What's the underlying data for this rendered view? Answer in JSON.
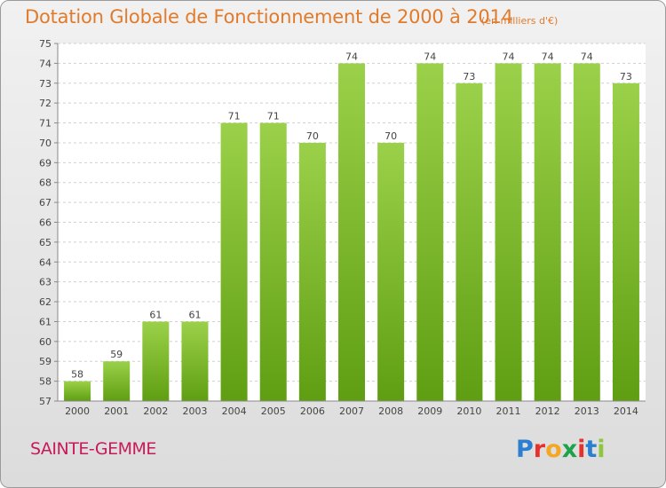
{
  "header": {
    "title": "Dotation Globale de Fonctionnement de 2000 à 2014",
    "unit": "(en milliers d'€)"
  },
  "footer": {
    "commune": "SAINTE-GEMME",
    "logo": "Proxiti",
    "logo_colors": [
      "#2a7fd0",
      "#e7312b",
      "#f5a623",
      "#1aa34a",
      "#e7312b",
      "#2a7fd0",
      "#8dc63f"
    ]
  },
  "chart_data": {
    "type": "bar",
    "title": "Dotation Globale de Fonctionnement de 2000 à 2014",
    "subtitle": "(en milliers d'€)",
    "xlabel": "",
    "ylabel": "",
    "categories": [
      "2000",
      "2001",
      "2002",
      "2003",
      "2004",
      "2005",
      "2006",
      "2007",
      "2008",
      "2009",
      "2010",
      "2011",
      "2012",
      "2013",
      "2014"
    ],
    "values": [
      58,
      59,
      61,
      61,
      71,
      71,
      70,
      74,
      70,
      74,
      73,
      74,
      74,
      74,
      73
    ],
    "value_labels": [
      "58",
      "59",
      "61",
      "61",
      "71",
      "71",
      "70",
      "74",
      "70",
      "74",
      "73",
      "74",
      "74",
      "74",
      "73"
    ],
    "ylim": [
      57,
      75
    ],
    "yticks": [
      "57",
      "58",
      "59",
      "60",
      "61",
      "62",
      "63",
      "64",
      "65",
      "66",
      "67",
      "68",
      "69",
      "70",
      "71",
      "72",
      "73",
      "74",
      "75"
    ],
    "grid": true,
    "bar_color_top": "#9bd14a",
    "bar_color_bottom": "#5f9e12"
  }
}
